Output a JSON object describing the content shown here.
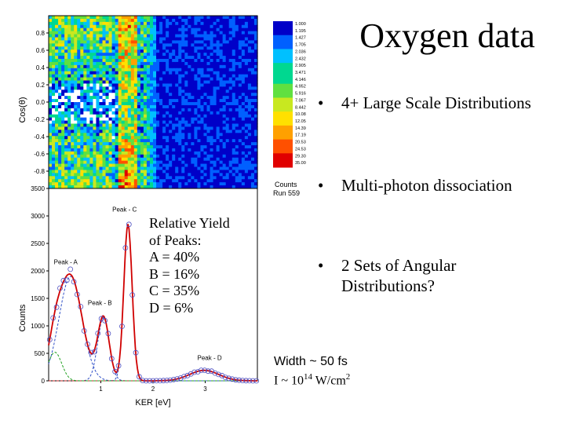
{
  "slide": {
    "title": "Oxygen data",
    "bullets": [
      "4+ Large Scale Distributions",
      "Multi-photon dissociation",
      "2 Sets of Angular Distributions?"
    ],
    "yield_lines": [
      "Relative Yield",
      "of Peaks:",
      "A = 40%",
      "B = 16%",
      "C = 35%",
      "D = 6%"
    ],
    "width_note": "Width ~ 50 fs",
    "intensity_prefix": "I ~ 10",
    "intensity_exp": "14",
    "intensity_unit": " W/cm",
    "intensity_unit_exp": "2"
  },
  "chart_data": [
    {
      "type": "heatmap",
      "ylabel": "Cos(θ)",
      "y_ticks": [
        "0.8",
        "0.6",
        "0.4",
        "0.2",
        "0.0",
        "-0.2",
        "-0.4",
        "-0.6",
        "-0.8"
      ],
      "ylim": [
        -1.0,
        1.0
      ],
      "colorbar_ticks": [
        "1.000",
        "1.195",
        "1.427",
        "1.705",
        "2.036",
        "2.432",
        "2.905",
        "3.471",
        "4.146",
        "4.952",
        "5.916",
        "7.067",
        "8.442",
        "10.08",
        "12.05",
        "14.39",
        "17.19",
        "20.53",
        "24.53",
        "29.30",
        "35.00"
      ],
      "colorbar_label": "Counts",
      "run_label": "Run 559",
      "colorscale": [
        "#ffffff",
        "#0000c8",
        "#0060ff",
        "#00c0ff",
        "#00d890",
        "#60e040",
        "#c8e820",
        "#ffe000",
        "#ffa000",
        "#ff5000",
        "#e00000"
      ]
    },
    {
      "type": "line",
      "xlabel": "KER [eV]",
      "ylabel": "Counts",
      "x_ticks": [
        1,
        2,
        3
      ],
      "y_ticks": [
        0,
        500,
        1000,
        1500,
        2000,
        2500,
        3000,
        3500
      ],
      "xlim": [
        0.0,
        4.0
      ],
      "ylim": [
        0,
        3500
      ],
      "peaks": [
        {
          "label": "Peak - A",
          "center": 0.42,
          "height": 1900,
          "sigma": 0.22,
          "color": "#3050c8"
        },
        {
          "label": "Peak - B",
          "center": 1.05,
          "height": 1150,
          "sigma": 0.11,
          "color": "#3050c8"
        },
        {
          "label": "Peak - C",
          "center": 1.52,
          "height": 2850,
          "sigma": 0.08,
          "color": "#3050c8"
        },
        {
          "label": "Peak - D",
          "center": 2.98,
          "height": 190,
          "sigma": 0.28,
          "color": "#c02020"
        },
        {
          "label": "",
          "center": 0.12,
          "height": 520,
          "sigma": 0.13,
          "color": "#20a020"
        }
      ],
      "fit_color": "#d00000",
      "data_marker_color": "#5050c0"
    }
  ]
}
